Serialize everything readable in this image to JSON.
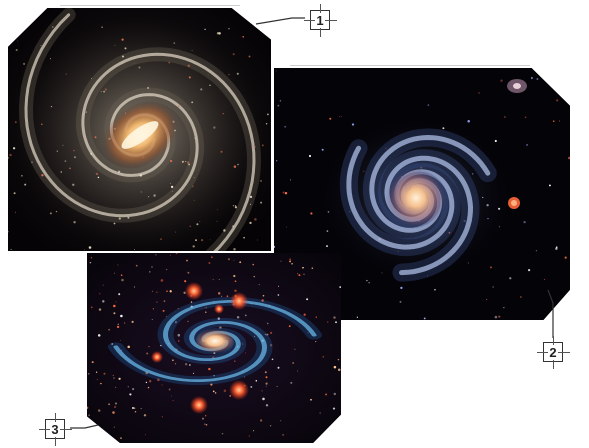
{
  "callouts": {
    "callout_1": "1",
    "callout_2": "2",
    "callout_3": "3"
  },
  "colors": {
    "background": "#ffffff",
    "space": "#050309",
    "galaxy_core": "#ffd9a0",
    "spiral_arm_blue": "#5aa8e0",
    "nebula_red": "#ff6a3a"
  }
}
